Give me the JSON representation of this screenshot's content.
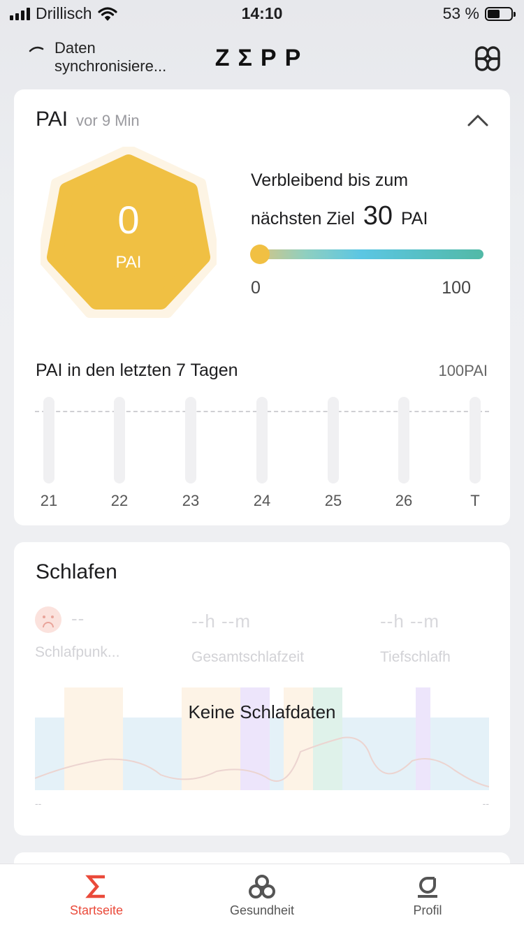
{
  "status_bar": {
    "carrier": "Drillisch",
    "time": "14:10",
    "battery": "53 %"
  },
  "header": {
    "sync_line1": "Daten",
    "sync_line2": "synchronisiere...",
    "logo": "ZΣPP"
  },
  "pai_card": {
    "title": "PAI",
    "updated": "vor 9 Min",
    "value": "0",
    "unit": "PAI",
    "remaining_line1": "Verbleibend bis zum",
    "remaining_line2": "nächsten Ziel",
    "remaining_value": "30",
    "remaining_unit": "PAI",
    "progress_min": "0",
    "progress_max": "100",
    "week_title": "PAI in den letzten 7 Tagen",
    "week_max": "100PAI",
    "days": [
      "21",
      "22",
      "23",
      "24",
      "25",
      "26",
      "T"
    ],
    "colors": {
      "hex_fill": "#f0c043",
      "hex_ring": "#fdf3e0"
    }
  },
  "sleep_card": {
    "title": "Schlafen",
    "metrics": [
      {
        "value": "--",
        "label": "Schlafpunk..."
      },
      {
        "value": "--h --m",
        "label": "Gesamtschlafzeit"
      },
      {
        "value": "--h --m",
        "label": "Tiefschlafh"
      }
    ],
    "no_data": "Keine Schlafdaten",
    "axis_left": "--",
    "axis_right": "--"
  },
  "tabbar": {
    "home": "Startseite",
    "health": "Gesundheit",
    "profile": "Profil",
    "active_color": "#ea4a3a"
  }
}
